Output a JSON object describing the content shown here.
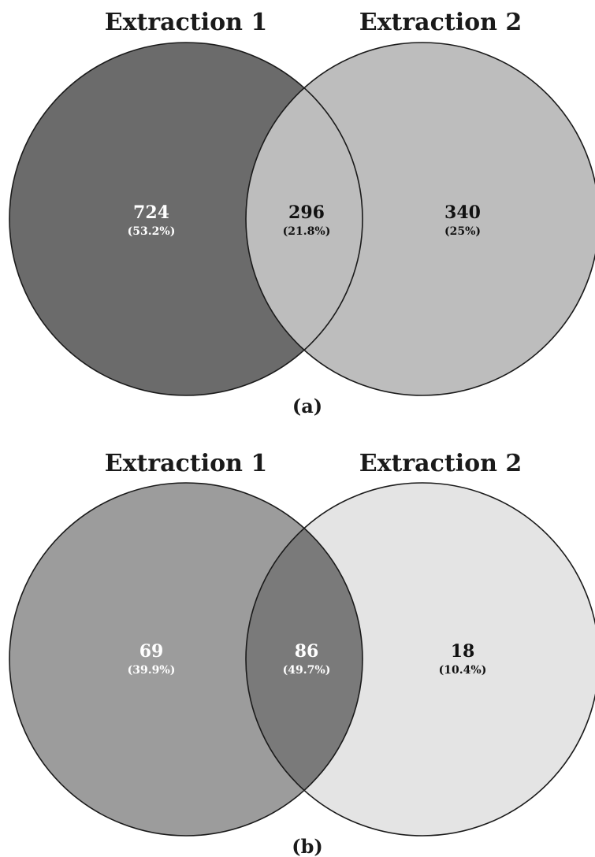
{
  "panels": [
    {
      "label": "(a)",
      "set_a": "Extraction 1",
      "set_b": "Extraction 2",
      "only_a": {
        "count": "724",
        "pct": "(53.2%)"
      },
      "both": {
        "count": "296",
        "pct": "(21.8%)"
      },
      "only_b": {
        "count": "340",
        "pct": "(25%)"
      },
      "colors": {
        "only_a": "#6b6b6b",
        "both": "#bdbdbd",
        "only_b": "#bdbdbd",
        "text_only_a": "#ffffff",
        "text_both": "#111111",
        "text_only_b": "#111111"
      }
    },
    {
      "label": "(b)",
      "set_a": "Extraction 1",
      "set_b": "Extraction 2",
      "only_a": {
        "count": "69",
        "pct": "(39.9%)"
      },
      "both": {
        "count": "86",
        "pct": "(49.7%)"
      },
      "only_b": {
        "count": "18",
        "pct": "(10.4%)"
      },
      "colors": {
        "only_a": "#9c9c9c",
        "both": "#7a7a7a",
        "only_b": "#e4e4e4",
        "text_only_a": "#ffffff",
        "text_both": "#ffffff",
        "text_only_b": "#111111"
      }
    }
  ]
}
